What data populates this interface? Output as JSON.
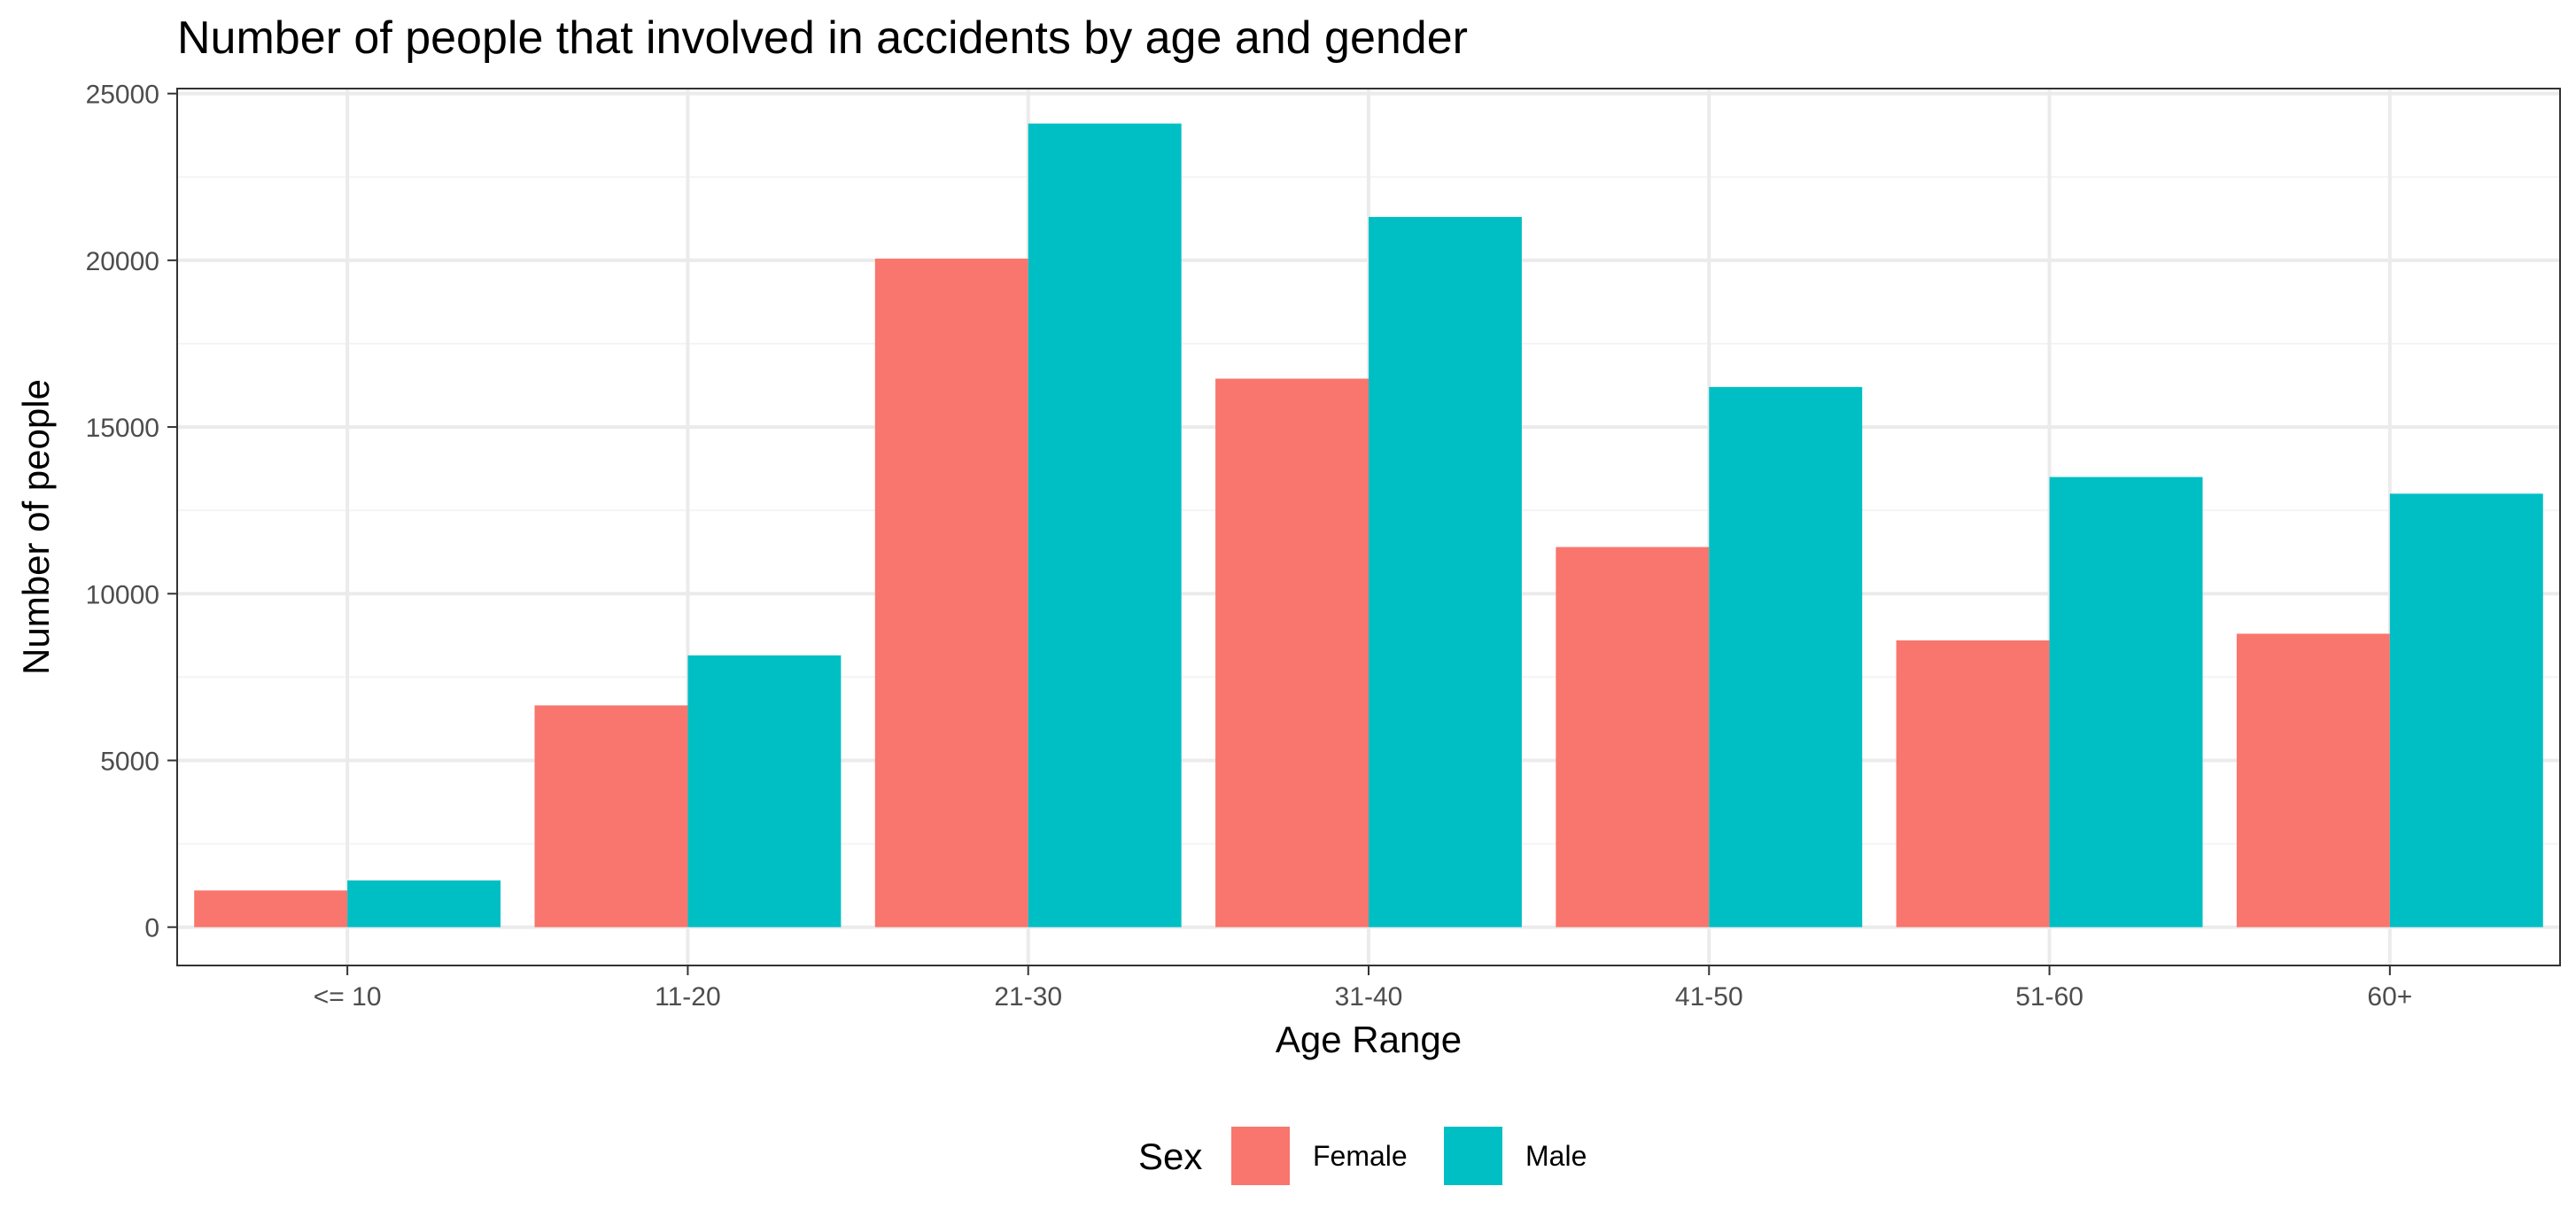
{
  "chart_data": {
    "type": "bar",
    "title": "Number of people that involved in accidents by age and gender",
    "xlabel": "Age Range",
    "ylabel": "Number of people",
    "categories": [
      "<= 10",
      "11-20",
      "21-30",
      "31-40",
      "41-50",
      "51-60",
      "60+"
    ],
    "series": [
      {
        "name": "Female",
        "color": "#F8766D",
        "values": [
          1100,
          6650,
          20050,
          16450,
          11400,
          8600,
          8800
        ]
      },
      {
        "name": "Male",
        "color": "#00BFC4",
        "values": [
          1400,
          8150,
          24100,
          21300,
          16200,
          13500,
          13000
        ]
      }
    ],
    "ylim": [
      -1150,
      25150
    ],
    "yticks": [
      0,
      5000,
      10000,
      15000,
      20000,
      25000
    ],
    "ytick_labels": [
      "0",
      "5000",
      "10000",
      "15000",
      "20000",
      "25000"
    ],
    "grid": true,
    "legend": {
      "title": "Sex",
      "position": "bottom"
    }
  }
}
